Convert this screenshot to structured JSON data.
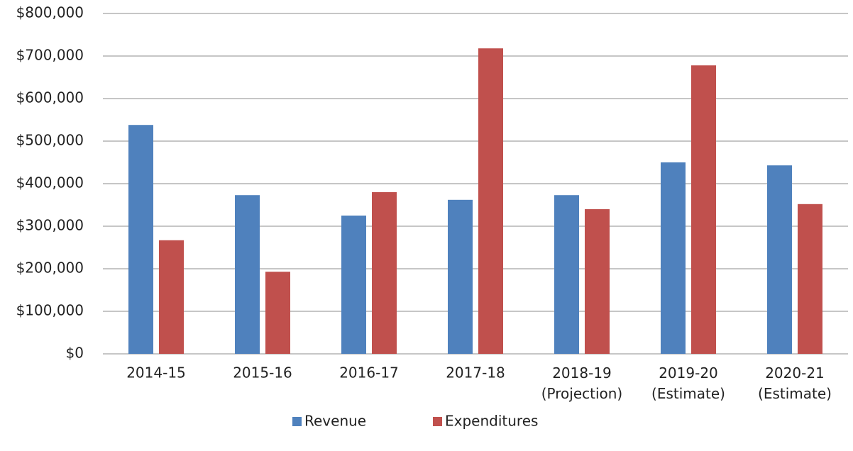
{
  "chart_data": {
    "type": "bar",
    "categories": [
      "2014-15",
      "2015-16",
      "2016-17",
      "2017-18",
      "2018-19\n(Projection)",
      "2019-20\n(Estimate)",
      "2020-21\n(Estimate)"
    ],
    "series": [
      {
        "name": "Revenue",
        "color": "#4f81bd",
        "values": [
          538000,
          373000,
          325000,
          362000,
          373000,
          450000,
          443000
        ]
      },
      {
        "name": "Expenditures",
        "color": "#c0504d",
        "values": [
          267000,
          193000,
          380000,
          718000,
          340000,
          678000,
          352000
        ]
      }
    ],
    "ylim": [
      0,
      800000
    ],
    "yticks": [
      {
        "value": 0,
        "label": "$0"
      },
      {
        "value": 100000,
        "label": "$100,000"
      },
      {
        "value": 200000,
        "label": "$200,000"
      },
      {
        "value": 300000,
        "label": "$300,000"
      },
      {
        "value": 400000,
        "label": "$400,000"
      },
      {
        "value": 500000,
        "label": "$500,000"
      },
      {
        "value": 600000,
        "label": "$600,000"
      },
      {
        "value": 700000,
        "label": "$700,000"
      },
      {
        "value": 800000,
        "label": "$800,000"
      }
    ],
    "grid": true,
    "legend": "bottom"
  }
}
